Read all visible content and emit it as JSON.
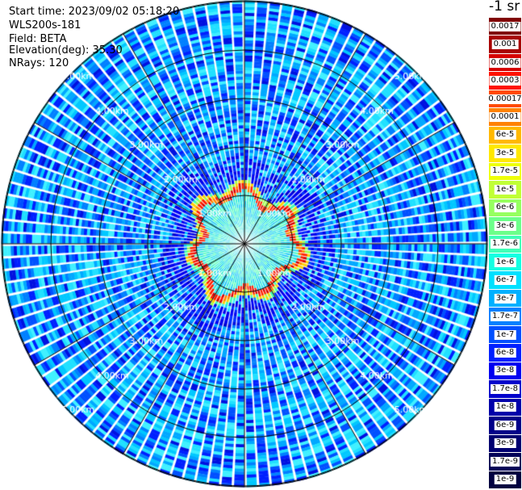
{
  "header": {
    "start_time": "Start time: 2023/09/02 05:18:20",
    "device": "WLS200s-181",
    "field": "Field: BETA",
    "elevation": "Elevation(deg): 35.30",
    "nrays": "NRays: 120"
  },
  "unit_label": "-1 sr",
  "colorbar": {
    "labels": [
      "0.0017",
      "0.001",
      "0.0006",
      "0.0003",
      "0.00017",
      "0.0001",
      "6e-5",
      "3e-5",
      "1.7e-5",
      "1e-5",
      "6e-6",
      "3e-6",
      "1.7e-6",
      "1e-6",
      "6e-7",
      "3e-7",
      "1.7e-7",
      "1e-7",
      "6e-8",
      "3e-8",
      "1.7e-8",
      "1e-8",
      "6e-9",
      "3e-9",
      "1.7e-9",
      "1e-9"
    ],
    "colors": [
      "#800000",
      "#a80000",
      "#d60000",
      "#ff1200",
      "#ff4a00",
      "#ff8200",
      "#ffb800",
      "#ffe800",
      "#eeff08",
      "#c0ff36",
      "#96ff60",
      "#6cff8a",
      "#40ffb6",
      "#14ffe2",
      "#00e0ff",
      "#00b0ff",
      "#0080ff",
      "#0050ff",
      "#0020ff",
      "#0000f0",
      "#0000cc",
      "#0000aa",
      "#000088",
      "#000070",
      "#000058",
      "#000040"
    ]
  },
  "range_rings": {
    "labels": [
      "1.00km",
      "2.00km",
      "3.00km",
      "4.00km",
      "5.00km"
    ]
  }
}
